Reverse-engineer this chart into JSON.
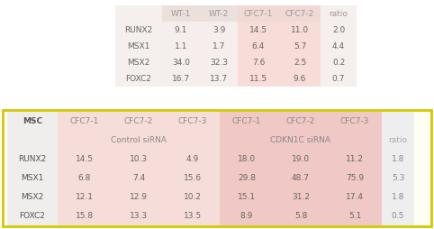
{
  "table1": {
    "col_headers": [
      "",
      "WT-1",
      "WT-2",
      "CFC7-1",
      "CFC7-2",
      "ratio"
    ],
    "rows": [
      [
        "RUNX2",
        "9.1",
        "3.9",
        "14.5",
        "11.0",
        "2.0"
      ],
      [
        "MSX1",
        "1.1",
        "1.7",
        "6.4",
        "5.7",
        "4.4"
      ],
      [
        "MSX2",
        "34.0",
        "32.3",
        "7.6",
        "2.5",
        "0.2"
      ],
      [
        "FOXC2",
        "16.7",
        "13.7",
        "11.5",
        "9.6",
        "0.7"
      ]
    ]
  },
  "table2": {
    "col_headers": [
      "MSC",
      "CFC7-1",
      "CFC7-2",
      "CFC7-3",
      "CFC7-1",
      "CFC7-2",
      "CFC7-3",
      ""
    ],
    "subheader_control": "Control siRNA",
    "subheader_cdkn": "CDKN1C siRNA",
    "ratio_label": "ratio",
    "rows": [
      [
        "RUNX2",
        "14.5",
        "10.3",
        "4.9",
        "18.0",
        "19.0",
        "11.2",
        "1.8"
      ],
      [
        "MSX1",
        "6.8",
        "7.4",
        "15.6",
        "29.8",
        "48.7",
        "75.9",
        "5.3"
      ],
      [
        "MSX2",
        "12.1",
        "12.9",
        "10.2",
        "15.1",
        "31.2",
        "17.4",
        "1.8"
      ],
      [
        "FOXC2",
        "15.8",
        "13.3",
        "13.5",
        "8.9",
        "5.8",
        "5.1",
        "0.5"
      ]
    ]
  }
}
